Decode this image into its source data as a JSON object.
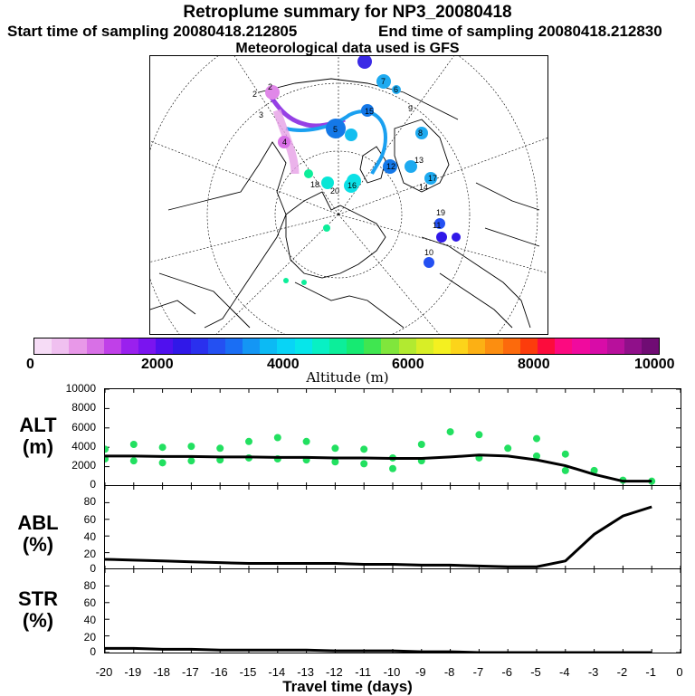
{
  "header": {
    "title": "Retroplume summary for NP3_20080418",
    "start": "Start time of sampling 20080418.212805",
    "end": "End time of sampling 20080418.212830",
    "met": "Meteorological data used is GFS"
  },
  "map_labels": [
    "2",
    "2",
    "3",
    "5",
    "7",
    "8",
    "14",
    "20",
    "18",
    "16",
    "19",
    "11",
    "13",
    "17",
    "6",
    "15",
    "12",
    "9",
    "10",
    "4"
  ],
  "colorbar": {
    "title": "Altitude (m)",
    "ticks": [
      "0",
      "2000",
      "4000",
      "6000",
      "8000",
      "10000"
    ],
    "colors": [
      "#f6dcf6",
      "#f0c0f0",
      "#e898e8",
      "#d870e6",
      "#c040e8",
      "#9a20ee",
      "#7a14f0",
      "#5010ee",
      "#3018e8",
      "#2a30ee",
      "#2450f2",
      "#1a6ef4",
      "#1496f4",
      "#0cbaf4",
      "#08d4f6",
      "#06e6ea",
      "#08f0c4",
      "#0cee9a",
      "#16ea72",
      "#40e650",
      "#80e63c",
      "#b2ea30",
      "#d8ee26",
      "#f4f020",
      "#fcd41a",
      "#fcb014",
      "#fc8e10",
      "#fc6a0c",
      "#fc3c0c",
      "#fc0c3c",
      "#fc0a80",
      "#f00a9e",
      "#d80ca8",
      "#b8109c",
      "#90108a",
      "#700c74"
    ]
  },
  "panels": {
    "alt": {
      "label_line1": "ALT",
      "label_line2": "(m)",
      "yticks": [
        "10000",
        "8000",
        "6000",
        "4000",
        "2000",
        "0"
      ]
    },
    "abl": {
      "label_line1": "ABL",
      "label_line2": "(%)",
      "yticks": [
        "80",
        "60",
        "40",
        "20",
        "0"
      ]
    },
    "str": {
      "label_line1": "STR",
      "label_line2": "(%)",
      "yticks": [
        "80",
        "60",
        "40",
        "20",
        "0"
      ]
    }
  },
  "x_axis": {
    "label": "Travel time (days)",
    "ticks": [
      "-20",
      "-19",
      "-18",
      "-17",
      "-16",
      "-15",
      "-14",
      "-13",
      "-12",
      "-11",
      "-10",
      "-9",
      "-8",
      "-7",
      "-6",
      "-5",
      "-4",
      "-3",
      "-2",
      "-1",
      "0"
    ]
  },
  "chart_data": [
    {
      "type": "line",
      "title": "ALT",
      "xlabel": "Travel time (days)",
      "ylabel": "ALT (m)",
      "xlim": [
        -20,
        0
      ],
      "ylim": [
        0,
        10000
      ],
      "series": [
        {
          "name": "median altitude",
          "x": [
            -20,
            -19,
            -18,
            -17,
            -16,
            -15,
            -14,
            -13,
            -12,
            -11,
            -10,
            -9,
            -8,
            -7,
            -6,
            -5,
            -4,
            -3,
            -2,
            -1
          ],
          "y": [
            3100,
            3100,
            3050,
            3050,
            3000,
            3000,
            2950,
            2950,
            2900,
            2900,
            2850,
            2850,
            3000,
            3200,
            3100,
            2700,
            2100,
            1200,
            500,
            500
          ]
        }
      ],
      "scatter": {
        "name": "plume clusters",
        "x": [
          -20,
          -20,
          -19,
          -19,
          -18,
          -18,
          -17,
          -17,
          -16,
          -16,
          -15,
          -15,
          -14,
          -14,
          -13,
          -13,
          -12,
          -12,
          -11,
          -11,
          -10,
          -10,
          -9,
          -9,
          -8,
          -7,
          -7,
          -6,
          -5,
          -5,
          -4,
          -4,
          -3,
          -2,
          -1
        ],
        "y": [
          2800,
          3800,
          2600,
          4300,
          2400,
          4000,
          2600,
          4100,
          2700,
          3900,
          2900,
          4600,
          2800,
          5000,
          2700,
          4600,
          2500,
          3900,
          2300,
          3800,
          1800,
          2900,
          2600,
          4300,
          5600,
          2900,
          5300,
          3900,
          3100,
          4900,
          1600,
          3300,
          1600,
          600,
          500
        ]
      }
    },
    {
      "type": "line",
      "title": "ABL",
      "xlabel": "Travel time (days)",
      "ylabel": "ABL (%)",
      "xlim": [
        -20,
        0
      ],
      "ylim": [
        0,
        100
      ],
      "series": [
        {
          "name": "ABL fraction",
          "x": [
            -20,
            -19,
            -18,
            -17,
            -16,
            -15,
            -14,
            -13,
            -12,
            -11,
            -10,
            -9,
            -8,
            -7,
            -6,
            -5,
            -4,
            -3,
            -2,
            -1
          ],
          "y": [
            12,
            11,
            10,
            9,
            8,
            7,
            7,
            7,
            7,
            6,
            6,
            5,
            5,
            4,
            3,
            3,
            10,
            42,
            64,
            75
          ]
        }
      ]
    },
    {
      "type": "line",
      "title": "STR",
      "xlabel": "Travel time (days)",
      "ylabel": "STR (%)",
      "xlim": [
        -20,
        0
      ],
      "ylim": [
        0,
        100
      ],
      "series": [
        {
          "name": "stratosphere fraction",
          "x": [
            -20,
            -19,
            -18,
            -17,
            -16,
            -15,
            -14,
            -13,
            -12,
            -11,
            -10,
            -9,
            -8,
            -7,
            -6,
            -5,
            -4,
            -3,
            -2,
            -1
          ],
          "y": [
            5,
            5,
            4,
            4,
            3,
            3,
            3,
            3,
            2,
            2,
            2,
            1,
            1,
            0,
            0,
            0,
            0,
            0,
            0,
            0
          ]
        }
      ]
    }
  ]
}
